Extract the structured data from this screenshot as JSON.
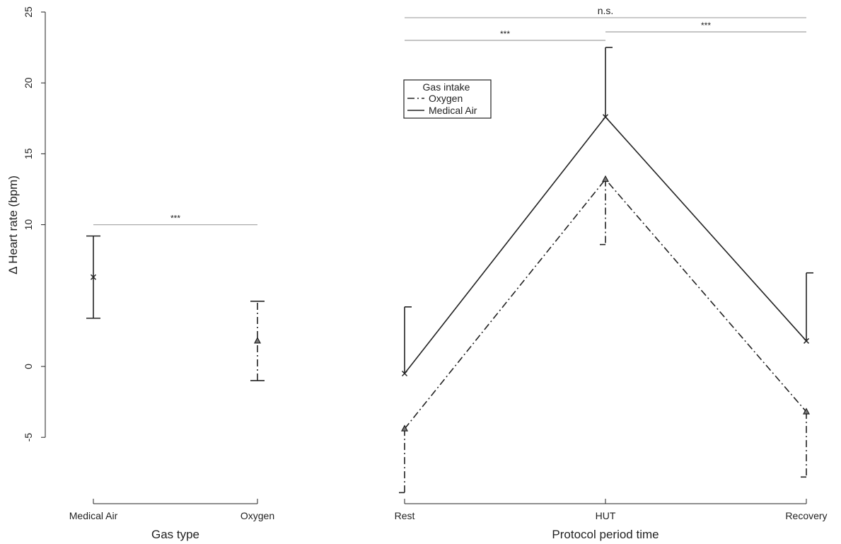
{
  "chart_data": [
    {
      "type": "scatter",
      "panel": "left",
      "xlabel": "Gas type",
      "ylabel": "Δ Heart rate (bpm)",
      "ylim": [
        -9,
        25
      ],
      "yticks": [
        -5,
        0,
        10,
        15,
        20,
        25
      ],
      "categories": [
        "Medical Air",
        "Oxygen"
      ],
      "series": [
        {
          "name": "Medical Air",
          "category": "Medical Air",
          "mean": 6.3,
          "upper": 9.2,
          "lower": 3.4,
          "marker": "x",
          "linestyle": "solid"
        },
        {
          "name": "Oxygen",
          "category": "Oxygen",
          "mean": 1.8,
          "upper": 4.6,
          "lower": -1.0,
          "marker": "triangle",
          "linestyle": "dotdash"
        }
      ],
      "annotations": [
        {
          "text": "***",
          "from": "Medical Air",
          "to": "Oxygen",
          "y": 10
        }
      ]
    },
    {
      "type": "line",
      "panel": "right",
      "xlabel": "Protocol period time",
      "ylim": [
        -9,
        25
      ],
      "categories": [
        "Rest",
        "HUT",
        "Recovery"
      ],
      "legend": {
        "title": "Gas intake",
        "position": "top-left",
        "entries": [
          "Oxygen",
          "Medical Air"
        ]
      },
      "series": [
        {
          "name": "Medical Air",
          "linestyle": "solid",
          "marker": "x",
          "values": [
            -0.5,
            17.6,
            1.8
          ],
          "upper": [
            4.2,
            22.5,
            6.6
          ]
        },
        {
          "name": "Oxygen",
          "linestyle": "dotdash",
          "marker": "triangle",
          "values": [
            -4.4,
            13.2,
            -3.2
          ],
          "lower": [
            -8.9,
            8.6,
            -7.8
          ]
        }
      ],
      "annotations": [
        {
          "text": "n.s.",
          "from": "Rest",
          "to": "Recovery",
          "y": 24.6
        },
        {
          "text": "***",
          "from": "HUT",
          "to": "Recovery",
          "y": 23.6
        },
        {
          "text": "***",
          "from": "Rest",
          "to": "HUT",
          "y": 23.0
        }
      ]
    }
  ]
}
